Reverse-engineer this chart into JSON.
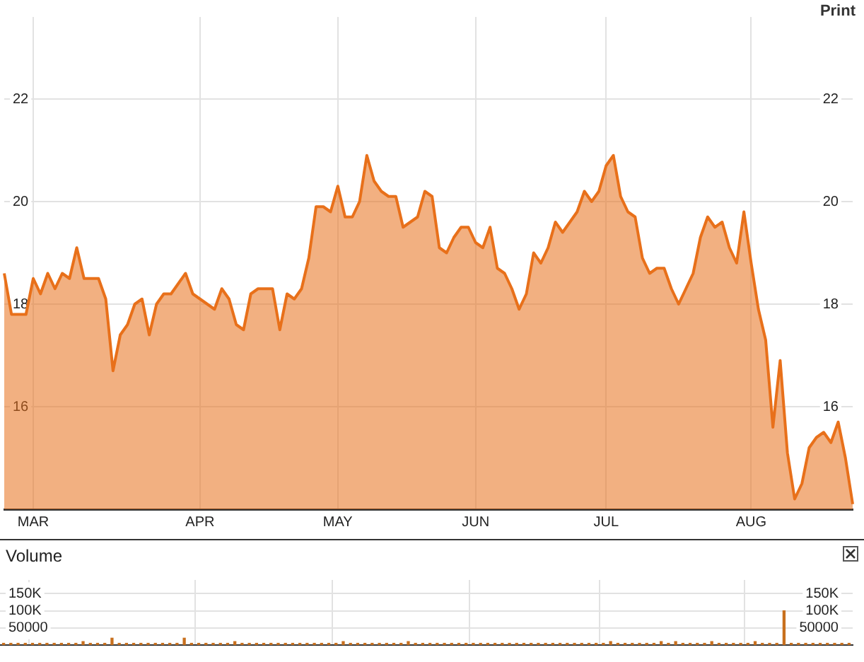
{
  "chart_data": [
    {
      "type": "area",
      "categories": [
        null,
        null,
        null,
        null,
        "MAR",
        null,
        null,
        null,
        null,
        null,
        null,
        null,
        null,
        null,
        null,
        null,
        null,
        null,
        null,
        null,
        null,
        null,
        null,
        null,
        null,
        null,
        null,
        "APR",
        null,
        null,
        null,
        null,
        null,
        null,
        null,
        null,
        null,
        null,
        null,
        null,
        null,
        null,
        null,
        null,
        null,
        null,
        "MAY",
        null,
        null,
        null,
        null,
        null,
        null,
        null,
        null,
        null,
        null,
        null,
        null,
        null,
        null,
        null,
        null,
        null,
        null,
        "JUN",
        null,
        null,
        null,
        null,
        null,
        null,
        null,
        null,
        null,
        null,
        null,
        null,
        null,
        null,
        null,
        null,
        null,
        "JUL",
        null,
        null,
        null,
        null,
        null,
        null,
        null,
        null,
        null,
        null,
        null,
        null,
        null,
        null,
        null,
        null,
        null,
        null,
        null,
        "AUG",
        null,
        null,
        null,
        null,
        null,
        null,
        null,
        null,
        null,
        null,
        null,
        null,
        null,
        null
      ],
      "series": [
        {
          "color": "#e8701a",
          "values": [
            18.6,
            17.8,
            17.8,
            17.8,
            18.5,
            18.2,
            18.6,
            18.3,
            18.6,
            18.5,
            19.1,
            18.5,
            18.5,
            18.5,
            18.1,
            16.7,
            17.4,
            17.6,
            18.0,
            18.1,
            17.4,
            18.0,
            18.2,
            18.2,
            18.4,
            18.6,
            18.2,
            18.1,
            18.0,
            17.9,
            18.3,
            18.1,
            17.6,
            17.5,
            18.2,
            18.3,
            18.3,
            18.3,
            17.5,
            18.2,
            18.1,
            18.3,
            18.9,
            19.9,
            19.9,
            19.8,
            20.3,
            19.7,
            19.7,
            20.0,
            20.9,
            20.4,
            20.2,
            20.1,
            20.1,
            19.5,
            19.6,
            19.7,
            20.2,
            20.1,
            19.1,
            19.0,
            19.3,
            19.5,
            19.5,
            19.2,
            19.1,
            19.5,
            18.7,
            18.6,
            18.3,
            17.9,
            18.2,
            19.0,
            18.8,
            19.1,
            19.6,
            19.4,
            19.6,
            19.8,
            20.2,
            20.0,
            20.2,
            20.7,
            20.9,
            20.1,
            19.8,
            19.7,
            18.9,
            18.6,
            18.7,
            18.7,
            18.3,
            18.0,
            18.3,
            18.6,
            19.3,
            19.7,
            19.5,
            19.6,
            19.1,
            18.8,
            19.8,
            18.8,
            17.9,
            17.3,
            15.6,
            16.9,
            15.1,
            14.2,
            14.5,
            15.2,
            15.4,
            15.5,
            15.3,
            15.7,
            15.0,
            14.1
          ]
        }
      ],
      "ylim": [
        14,
        23.6
      ],
      "yticks": [
        16,
        18,
        20,
        22
      ],
      "y2lim": [
        14,
        23.6
      ],
      "y2ticks": [
        16,
        18,
        20,
        22
      ],
      "grid": true,
      "annotations": [
        "Print"
      ]
    },
    {
      "type": "bar",
      "title": "Volume",
      "categories": [
        null,
        null,
        null,
        null,
        null,
        null,
        null,
        null,
        null,
        null,
        null,
        null,
        null,
        null,
        null,
        null,
        null,
        null,
        null,
        null,
        null,
        null,
        null,
        null,
        null,
        null,
        null,
        null,
        null,
        null,
        null,
        null,
        null,
        null,
        null,
        null,
        null,
        null,
        null,
        null,
        null,
        null,
        null,
        null,
        null,
        null,
        null,
        null,
        null,
        null,
        null,
        null,
        null,
        null,
        null,
        null,
        null,
        null,
        null,
        null,
        null,
        null,
        null,
        null,
        null,
        null,
        null,
        null,
        null,
        null,
        null,
        null,
        null,
        null,
        null,
        null,
        null,
        null,
        null,
        null,
        null,
        null,
        null,
        null,
        null,
        null,
        null,
        null,
        null,
        null,
        null,
        null,
        null,
        null,
        null,
        null,
        null,
        null,
        null,
        null,
        null,
        null,
        null,
        null,
        null,
        null,
        null,
        null,
        null,
        null,
        null,
        null,
        null,
        null,
        null,
        null,
        null,
        null
      ],
      "color": "#c8701e",
      "values": [
        5000,
        5000,
        5000,
        5000,
        5000,
        5000,
        5000,
        5000,
        5000,
        5000,
        5000,
        10000,
        5000,
        5000,
        5000,
        20000,
        5000,
        5000,
        5000,
        5000,
        5000,
        5000,
        5000,
        5000,
        5000,
        20000,
        5000,
        5000,
        5000,
        5000,
        5000,
        5000,
        10000,
        5000,
        5000,
        5000,
        5000,
        5000,
        5000,
        5000,
        5000,
        5000,
        5000,
        5000,
        5000,
        5000,
        5000,
        10000,
        5000,
        5000,
        5000,
        5000,
        5000,
        5000,
        5000,
        5000,
        10000,
        5000,
        5000,
        5000,
        5000,
        5000,
        5000,
        5000,
        5000,
        5000,
        5000,
        5000,
        5000,
        5000,
        5000,
        5000,
        5000,
        5000,
        5000,
        5000,
        5000,
        5000,
        5000,
        5000,
        5000,
        5000,
        5000,
        5000,
        10000,
        5000,
        5000,
        5000,
        5000,
        5000,
        5000,
        10000,
        5000,
        10000,
        5000,
        5000,
        5000,
        5000,
        10000,
        5000,
        5000,
        5000,
        5000,
        5000,
        10000,
        5000,
        5000,
        5000,
        100000,
        5000,
        5000,
        5000,
        5000,
        5000,
        5000,
        5000,
        5000,
        5000
      ],
      "ylim": [
        0,
        190000
      ],
      "yticks": [
        {
          "value": 50000,
          "label": "50000"
        },
        {
          "value": 100000,
          "label": "100K"
        },
        {
          "value": 150000,
          "label": "150K"
        }
      ],
      "y2lim": [
        0,
        190000
      ],
      "y2ticks": [
        {
          "value": 50000,
          "label": "50000"
        },
        {
          "value": 100000,
          "label": "100K"
        },
        {
          "value": 150000,
          "label": "150K"
        }
      ],
      "grid": true,
      "tick_labels": "y"
    }
  ]
}
